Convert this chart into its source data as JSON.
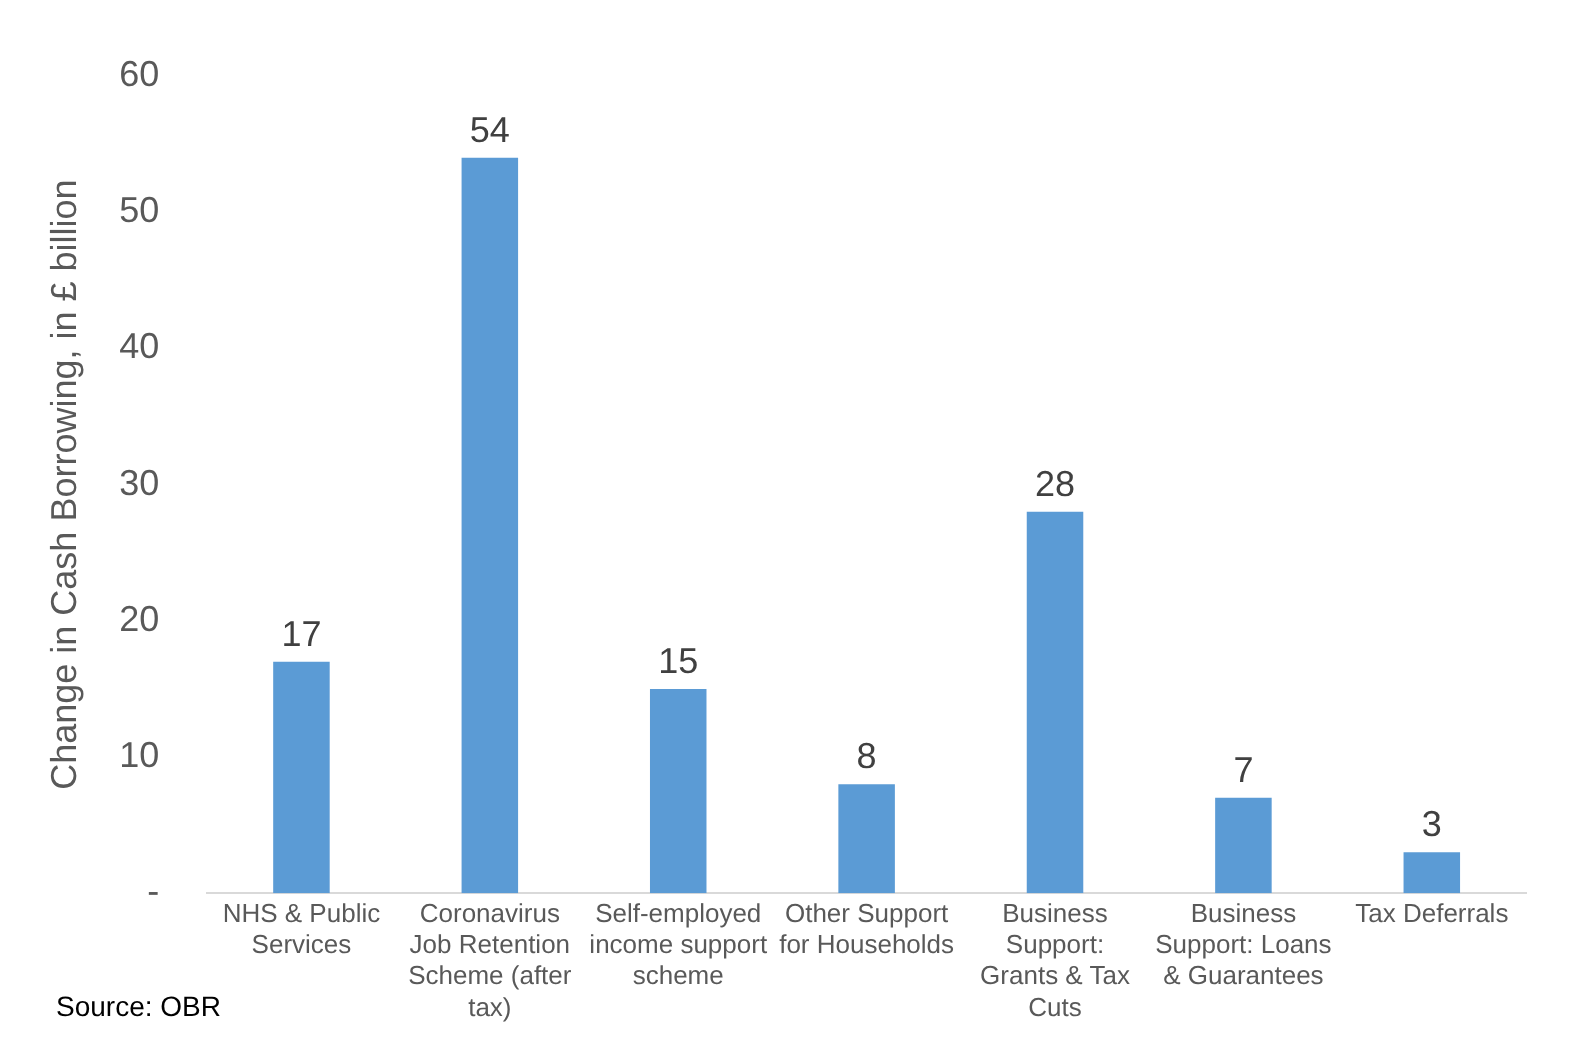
{
  "chart_data": {
    "type": "bar",
    "ylabel": "Change in Cash Borrowing, in £ billion",
    "categories": [
      "NHS & Public Services",
      "Coronavirus Job Retention Scheme (after tax)",
      "Self-employed income support scheme",
      "Other Support for Households",
      "Business Support: Grants & Tax Cuts",
      "Business Support: Loans & Guarantees",
      "Tax Deferrals"
    ],
    "values": [
      17,
      54,
      15,
      8,
      28,
      7,
      3
    ],
    "color": "#5b9bd5",
    "data_labels": true,
    "ylim": [
      0,
      60
    ],
    "yticks": [
      {
        "value": 0,
        "label": "-"
      },
      10,
      20,
      30,
      40,
      50,
      60
    ],
    "grid": false,
    "legend": false,
    "annotations": [
      "Source: OBR"
    ]
  }
}
